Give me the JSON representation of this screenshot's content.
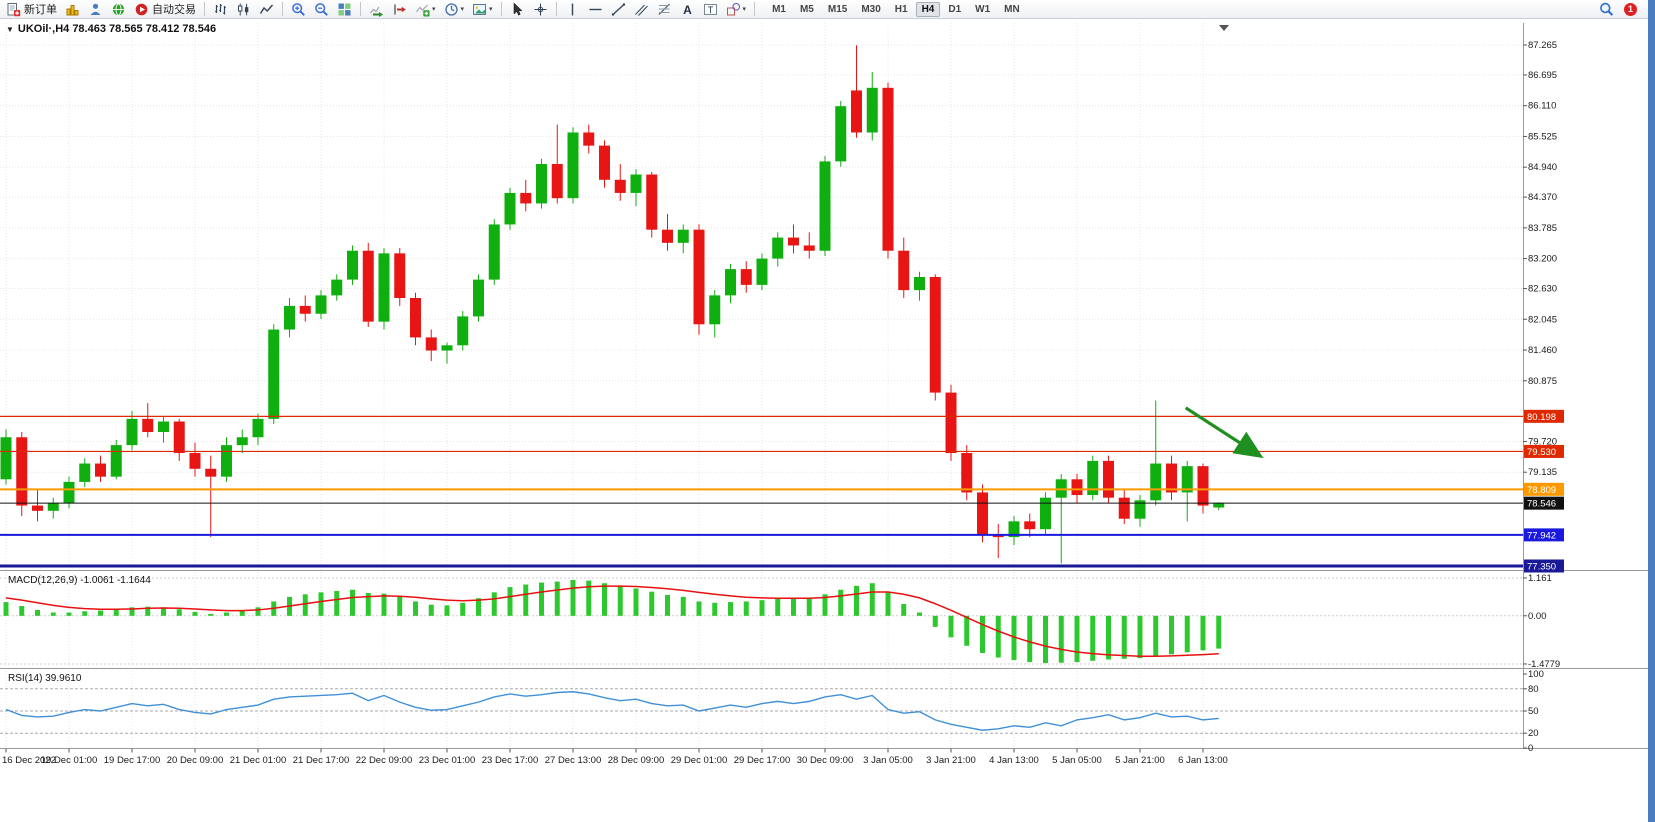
{
  "window": {
    "right_edge_color": "#4a7cc0"
  },
  "toolbar": {
    "items": [
      {
        "name": "new-order-button",
        "icon": "new-order",
        "label": "新订单"
      },
      {
        "name": "charts-button",
        "icon": "charts-gold"
      },
      {
        "name": "market-watch-button",
        "icon": "person"
      },
      {
        "name": "web-terminal-button",
        "icon": "globe-green"
      },
      {
        "name": "auto-trading-button",
        "icon": "autotrade",
        "label": "自动交易"
      },
      {
        "type": "sep"
      },
      {
        "name": "bar-chart-button",
        "icon": "bars-chart"
      },
      {
        "name": "candlestick-button",
        "icon": "candles"
      },
      {
        "name": "line-chart-button",
        "icon": "line-chart"
      },
      {
        "type": "sep"
      },
      {
        "name": "zoom-in-button",
        "icon": "zoom-in"
      },
      {
        "name": "zoom-out-button",
        "icon": "zoom-out"
      },
      {
        "name": "tile-windows-button",
        "icon": "tiles"
      },
      {
        "type": "sep"
      },
      {
        "name": "auto-scroll-button",
        "icon": "autoscroll"
      },
      {
        "name": "chart-shift-button",
        "icon": "chart-shift"
      },
      {
        "name": "indicators-button",
        "icon": "add-indicator",
        "caret": true
      },
      {
        "name": "periods-button",
        "icon": "periods-clock",
        "caret": true
      },
      {
        "name": "templates-button",
        "icon": "template-pic",
        "caret": true
      },
      {
        "type": "sep"
      },
      {
        "name": "cursor-button",
        "icon": "cursor"
      },
      {
        "name": "crosshair-button",
        "icon": "crosshair"
      },
      {
        "type": "sep"
      },
      {
        "name": "vertical-line-button",
        "icon": "vline"
      },
      {
        "name": "horizontal-line-button",
        "icon": "hline"
      },
      {
        "name": "trendline-button",
        "icon": "trendline"
      },
      {
        "name": "channel-button",
        "icon": "channel"
      },
      {
        "name": "fibonacci-button",
        "icon": "fibo"
      },
      {
        "name": "text-button",
        "icon": "text-a"
      },
      {
        "name": "label-button",
        "icon": "label-t"
      },
      {
        "name": "shapes-button",
        "icon": "shapes",
        "caret": true
      },
      {
        "type": "sep"
      }
    ],
    "timeframes": [
      "M1",
      "M5",
      "M15",
      "M30",
      "H1",
      "H4",
      "D1",
      "W1",
      "MN"
    ],
    "active_timeframe": "H4",
    "notification_count": "1"
  },
  "chart": {
    "symbol": "UKOil",
    "timeframe": "H4",
    "header_full": "UKOil·,H4  78.463 78.565 78.412 78.546",
    "ohlc": {
      "open": "78.463",
      "high": "78.565",
      "low": "78.412",
      "close": "78.546"
    }
  },
  "macd": {
    "label_full": "MACD(12,26,9) -1.0061 -1.1644"
  },
  "rsi": {
    "label_full": "RSI(14) 39.9610"
  },
  "chart_data": {
    "type": "candlestick",
    "symbol": "UKOil",
    "timeframe": "H4",
    "label_every": 4,
    "x_labels": [
      "16 Dec 2022",
      "19 Dec 01:00",
      "19 Dec 17:00",
      "20 Dec 09:00",
      "21 Dec 01:00",
      "21 Dec 17:00",
      "22 Dec 09:00",
      "23 Dec 01:00",
      "23 Dec 17:00",
      "27 Dec 13:00",
      "28 Dec 09:00",
      "29 Dec 01:00",
      "29 Dec 17:00",
      "30 Dec 09:00",
      "3 Jan 05:00",
      "3 Jan 21:00",
      "4 Jan 13:00",
      "5 Jan 05:00",
      "5 Jan 21:00",
      "6 Jan 13:00"
    ],
    "price_axis_labels": [
      "87.265",
      "86.695",
      "86.110",
      "85.525",
      "84.940",
      "84.370",
      "83.785",
      "83.200",
      "82.630",
      "82.045",
      "81.460",
      "80.875",
      "79.720",
      "79.135"
    ],
    "candles": [
      [
        79.0,
        79.95,
        78.9,
        79.8
      ],
      [
        79.8,
        79.9,
        78.3,
        78.5
      ],
      [
        78.5,
        78.8,
        78.2,
        78.4
      ],
      [
        78.4,
        78.65,
        78.25,
        78.55
      ],
      [
        78.55,
        79.05,
        78.45,
        78.95
      ],
      [
        78.95,
        79.4,
        78.85,
        79.3
      ],
      [
        79.3,
        79.45,
        78.95,
        79.05
      ],
      [
        79.05,
        79.75,
        79.0,
        79.65
      ],
      [
        79.65,
        80.3,
        79.55,
        80.15
      ],
      [
        80.15,
        80.45,
        79.8,
        79.9
      ],
      [
        79.9,
        80.2,
        79.7,
        80.1
      ],
      [
        80.1,
        80.15,
        79.35,
        79.5
      ],
      [
        79.5,
        79.7,
        79.05,
        79.2
      ],
      [
        79.2,
        79.45,
        77.9,
        79.05
      ],
      [
        79.05,
        79.8,
        78.95,
        79.65
      ],
      [
        79.65,
        79.95,
        79.5,
        79.8
      ],
      [
        79.8,
        80.25,
        79.65,
        80.15
      ],
      [
        80.15,
        81.95,
        80.05,
        81.85
      ],
      [
        81.85,
        82.45,
        81.7,
        82.3
      ],
      [
        82.3,
        82.5,
        82.0,
        82.15
      ],
      [
        82.15,
        82.6,
        82.05,
        82.5
      ],
      [
        82.5,
        82.9,
        82.4,
        82.8
      ],
      [
        82.8,
        83.45,
        82.7,
        83.35
      ],
      [
        83.35,
        83.5,
        81.9,
        82.0
      ],
      [
        82.0,
        83.4,
        81.85,
        83.3
      ],
      [
        83.3,
        83.4,
        82.3,
        82.45
      ],
      [
        82.45,
        82.55,
        81.55,
        81.7
      ],
      [
        81.7,
        81.85,
        81.25,
        81.45
      ],
      [
        81.45,
        81.6,
        81.2,
        81.55
      ],
      [
        81.55,
        82.2,
        81.45,
        82.1
      ],
      [
        82.1,
        82.9,
        82.0,
        82.8
      ],
      [
        82.8,
        83.95,
        82.7,
        83.85
      ],
      [
        83.85,
        84.55,
        83.75,
        84.45
      ],
      [
        84.45,
        84.7,
        84.1,
        84.25
      ],
      [
        84.25,
        85.1,
        84.15,
        85.0
      ],
      [
        85.0,
        85.75,
        84.25,
        84.35
      ],
      [
        84.35,
        85.7,
        84.25,
        85.6
      ],
      [
        85.6,
        85.75,
        85.2,
        85.35
      ],
      [
        85.35,
        85.45,
        84.55,
        84.7
      ],
      [
        84.7,
        85.0,
        84.3,
        84.45
      ],
      [
        84.45,
        84.9,
        84.2,
        84.8
      ],
      [
        84.8,
        84.85,
        83.6,
        83.75
      ],
      [
        83.75,
        84.05,
        83.35,
        83.5
      ],
      [
        83.5,
        83.85,
        83.3,
        83.75
      ],
      [
        83.75,
        83.85,
        81.75,
        81.95
      ],
      [
        81.95,
        82.6,
        81.7,
        82.5
      ],
      [
        82.5,
        83.1,
        82.35,
        83.0
      ],
      [
        83.0,
        83.15,
        82.55,
        82.7
      ],
      [
        82.7,
        83.3,
        82.6,
        83.2
      ],
      [
        83.2,
        83.7,
        83.05,
        83.6
      ],
      [
        83.6,
        83.85,
        83.3,
        83.45
      ],
      [
        83.45,
        83.7,
        83.2,
        83.35
      ],
      [
        83.35,
        85.15,
        83.25,
        85.05
      ],
      [
        85.05,
        86.2,
        84.95,
        86.1
      ],
      [
        86.4,
        87.26,
        85.5,
        85.6
      ],
      [
        85.6,
        86.75,
        85.45,
        86.45
      ],
      [
        86.45,
        86.55,
        83.2,
        83.35
      ],
      [
        83.35,
        83.6,
        82.45,
        82.6
      ],
      [
        82.6,
        82.95,
        82.4,
        82.85
      ],
      [
        82.85,
        82.9,
        80.5,
        80.65
      ],
      [
        80.65,
        80.8,
        79.35,
        79.5
      ],
      [
        79.5,
        79.65,
        78.6,
        78.75
      ],
      [
        78.75,
        78.9,
        77.8,
        77.95
      ],
      [
        77.95,
        78.15,
        77.5,
        77.9
      ],
      [
        77.9,
        78.3,
        77.75,
        78.2
      ],
      [
        78.2,
        78.35,
        77.9,
        78.05
      ],
      [
        78.05,
        78.75,
        77.95,
        78.65
      ],
      [
        78.65,
        79.1,
        77.4,
        79.0
      ],
      [
        79.0,
        79.1,
        78.55,
        78.7
      ],
      [
        78.7,
        79.45,
        78.6,
        79.35
      ],
      [
        79.35,
        79.45,
        78.55,
        78.65
      ],
      [
        78.65,
        78.8,
        78.15,
        78.25
      ],
      [
        78.25,
        78.7,
        78.1,
        78.6
      ],
      [
        78.6,
        80.5,
        78.5,
        79.3
      ],
      [
        79.3,
        79.45,
        78.6,
        78.75
      ],
      [
        78.75,
        79.35,
        78.2,
        79.25
      ],
      [
        79.25,
        79.3,
        78.35,
        78.5
      ],
      [
        78.463,
        78.565,
        78.412,
        78.546
      ]
    ],
    "hlines": [
      {
        "price": 80.198,
        "color": "#e02800",
        "width": 1.2
      },
      {
        "price": 79.53,
        "color": "#e02800",
        "width": 1.2
      },
      {
        "price": 78.809,
        "color": "#ff9900",
        "width": 2
      },
      {
        "price": 78.546,
        "color": "#111111",
        "width": 1
      },
      {
        "price": 77.942,
        "color": "#1a1adf",
        "width": 2
      },
      {
        "price": 77.35,
        "color": "#1a1a99",
        "width": 3
      }
    ],
    "arrow": {
      "from_index": 74.9,
      "from_price": 80.36,
      "to_index": 79.5,
      "to_price": 79.47,
      "color": "#1f8f1f"
    },
    "macd": {
      "scale_labels": [
        "1.161",
        "0.00",
        "-1.4779"
      ],
      "histogram": [
        0.42,
        0.3,
        0.18,
        0.1,
        0.1,
        0.14,
        0.16,
        0.2,
        0.26,
        0.28,
        0.26,
        0.2,
        0.12,
        0.06,
        0.1,
        0.16,
        0.26,
        0.44,
        0.58,
        0.66,
        0.72,
        0.76,
        0.8,
        0.7,
        0.68,
        0.58,
        0.44,
        0.34,
        0.32,
        0.4,
        0.54,
        0.72,
        0.88,
        0.96,
        1.02,
        1.05,
        1.1,
        1.08,
        1.0,
        0.9,
        0.84,
        0.74,
        0.64,
        0.58,
        0.44,
        0.4,
        0.42,
        0.44,
        0.48,
        0.52,
        0.54,
        0.56,
        0.66,
        0.8,
        0.92,
        1.0,
        0.74,
        0.36,
        0.1,
        -0.34,
        -0.66,
        -0.92,
        -1.14,
        -1.28,
        -1.36,
        -1.42,
        -1.45,
        -1.44,
        -1.42,
        -1.38,
        -1.34,
        -1.32,
        -1.3,
        -1.24,
        -1.18,
        -1.12,
        -1.06,
        -1.0061
      ],
      "signal": [
        0.55,
        0.48,
        0.4,
        0.32,
        0.26,
        0.22,
        0.2,
        0.2,
        0.21,
        0.23,
        0.24,
        0.23,
        0.21,
        0.18,
        0.16,
        0.16,
        0.18,
        0.23,
        0.3,
        0.37,
        0.44,
        0.5,
        0.56,
        0.59,
        0.61,
        0.6,
        0.57,
        0.52,
        0.48,
        0.46,
        0.48,
        0.52,
        0.59,
        0.66,
        0.73,
        0.79,
        0.85,
        0.89,
        0.91,
        0.91,
        0.9,
        0.87,
        0.83,
        0.78,
        0.72,
        0.66,
        0.61,
        0.57,
        0.55,
        0.54,
        0.54,
        0.54,
        0.56,
        0.61,
        0.67,
        0.73,
        0.73,
        0.66,
        0.55,
        0.37,
        0.17,
        -0.05,
        -0.27,
        -0.47,
        -0.65,
        -0.8,
        -0.93,
        -1.03,
        -1.11,
        -1.16,
        -1.2,
        -1.22,
        -1.24,
        -1.24,
        -1.23,
        -1.21,
        -1.19,
        -1.1644
      ]
    },
    "rsi": {
      "scale_labels": [
        "100",
        "80",
        "50",
        "20",
        "0"
      ],
      "levels": [
        80,
        50,
        20
      ],
      "values": [
        52,
        44,
        42,
        43,
        48,
        52,
        50,
        55,
        60,
        57,
        59,
        52,
        48,
        46,
        52,
        55,
        58,
        66,
        69,
        70,
        71,
        72,
        74,
        64,
        71,
        62,
        55,
        51,
        52,
        57,
        62,
        69,
        73,
        70,
        72,
        75,
        76,
        73,
        68,
        64,
        66,
        60,
        57,
        58,
        50,
        54,
        58,
        55,
        60,
        63,
        60,
        63,
        69,
        72,
        66,
        71,
        52,
        47,
        49,
        38,
        32,
        28,
        24,
        26,
        30,
        28,
        34,
        30,
        38,
        41,
        45,
        38,
        41,
        47,
        42,
        43,
        38,
        39.961
      ]
    },
    "colors": {
      "up": "#0faf0f",
      "down": "#e81515",
      "grid": "#e4e4e4",
      "separator": "#9a9a9a",
      "macd_hist": "#2dc82d",
      "macd_signal": "#e81010",
      "rsi_line": "#4090d8",
      "axis_text": "#1a1a1a",
      "arrow": "#1f8f1f"
    }
  }
}
